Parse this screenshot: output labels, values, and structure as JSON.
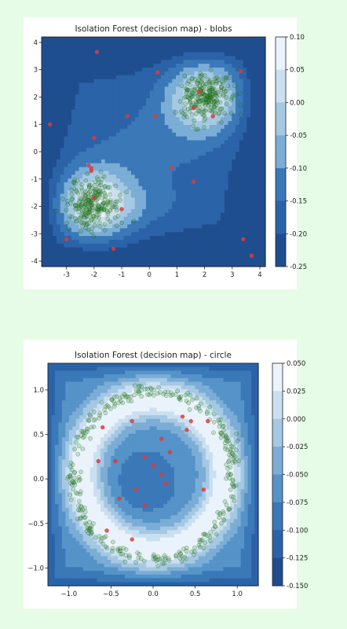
{
  "chart_data": [
    {
      "type": "contour",
      "title": "Isolation Forest (decision map) - blobs",
      "xlim": [
        -3.9,
        4.2
      ],
      "ylim": [
        -4.2,
        4.2
      ],
      "xticks": [
        -3,
        -2,
        -1,
        0,
        1,
        2,
        3,
        4
      ],
      "yticks": [
        -4,
        -3,
        -2,
        -1,
        0,
        1,
        2,
        3,
        4
      ],
      "colorbar": {
        "ticks": [
          "0.10",
          "0.05",
          "0.00",
          "-0.05",
          "-0.10",
          "-0.15",
          "-0.20",
          "-0.25"
        ],
        "range": [
          -0.25,
          0.1
        ]
      },
      "clusters": [
        {
          "name": "",
          "center": [
            2.0,
            2.0
          ],
          "radius": 1.0,
          "count": 260,
          "color": "#2e8b2e"
        },
        {
          "name": "",
          "center": [
            -2.0,
            -1.9
          ],
          "radius": 1.1,
          "count": 260,
          "color": "#2e8b2e"
        }
      ],
      "outliers": [
        [
          -1.9,
          3.65
        ],
        [
          0.3,
          2.9
        ],
        [
          3.3,
          2.95
        ],
        [
          1.8,
          2.2
        ],
        [
          1.6,
          1.6
        ],
        [
          2.3,
          1.3
        ],
        [
          0.2,
          1.3
        ],
        [
          -0.8,
          1.3
        ],
        [
          -3.6,
          1.0
        ],
        [
          -2.0,
          0.5
        ],
        [
          -2.2,
          -0.5
        ],
        [
          -2.1,
          -0.6
        ],
        [
          -2.1,
          -0.7
        ],
        [
          0.8,
          -0.6
        ],
        [
          1.6,
          -1.1
        ],
        [
          -2.0,
          -1.7
        ],
        [
          -1.0,
          -2.1
        ],
        [
          -3.0,
          -3.2
        ],
        [
          -1.3,
          -3.55
        ],
        [
          3.4,
          -3.2
        ],
        [
          3.7,
          -3.8
        ]
      ],
      "outlier_color": "#dd3b3b"
    },
    {
      "type": "contour",
      "title": "Isolation Forest (decision map) - circle",
      "xlim": [
        -1.25,
        1.25
      ],
      "ylim": [
        -1.2,
        1.3
      ],
      "xticks": [
        "−1.0",
        "−0.5",
        "0.0",
        "0.5",
        "1.0"
      ],
      "yticks": [
        "1.0",
        "0.5",
        "0.0",
        "−0.5",
        "−1.0"
      ],
      "colorbar": {
        "ticks": [
          "0.050",
          "0.025",
          "0.000",
          "-0.025",
          "-0.050",
          "-0.075",
          "-0.100",
          "-0.125",
          "-0.150"
        ],
        "range": [
          -0.15,
          0.05
        ]
      },
      "rings": [
        {
          "name": "",
          "radius": 0.95,
          "count": 340,
          "color": "#2e8b2e"
        }
      ],
      "outliers": [
        [
          -0.25,
          0.65
        ],
        [
          0.35,
          0.7
        ],
        [
          0.45,
          0.65
        ],
        [
          0.4,
          0.55
        ],
        [
          0.65,
          0.65
        ],
        [
          -0.6,
          0.58
        ],
        [
          -0.65,
          0.2
        ],
        [
          -0.45,
          0.2
        ],
        [
          -0.1,
          0.25
        ],
        [
          0.1,
          0.45
        ],
        [
          0.2,
          0.3
        ],
        [
          0.0,
          0.15
        ],
        [
          0.1,
          0.05
        ],
        [
          0.15,
          -0.05
        ],
        [
          -0.2,
          -0.12
        ],
        [
          -0.4,
          -0.22
        ],
        [
          -0.1,
          -0.3
        ],
        [
          0.6,
          -0.12
        ],
        [
          -0.55,
          -0.58
        ],
        [
          -0.25,
          -0.68
        ]
      ],
      "outlier_color": "#dd3b3b"
    }
  ]
}
